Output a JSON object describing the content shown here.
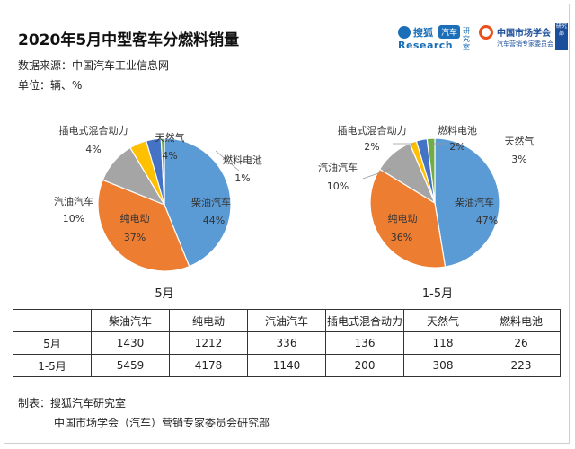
{
  "title": "2020年5月中型客车分燃料销量",
  "source": "数据来源：中国汽车工业信息网",
  "unit": "单位：辆、%",
  "logos": {
    "sohu": {
      "cn": "搜狐",
      "badge": "汽车",
      "en": "Research",
      "lab": "研究室"
    },
    "cma": {
      "cn": "中国市场学会",
      "sub": "汽车营销专家委员会",
      "tag": "研究部"
    }
  },
  "chart_data": [
    {
      "type": "pie",
      "title": "5月",
      "categories": [
        "柴油汽车",
        "纯电动",
        "汽油汽车",
        "插电式混合动力",
        "天然气",
        "燃料电池"
      ],
      "values": [
        1430,
        1212,
        336,
        136,
        118,
        26
      ],
      "percent_labels": [
        "44%",
        "37%",
        "10%",
        "4%",
        "4%",
        "1%"
      ],
      "colors": [
        "#5b9bd5",
        "#ed7d31",
        "#a5a5a5",
        "#ffc000",
        "#4472c4",
        "#70ad47"
      ]
    },
    {
      "type": "pie",
      "title": "1-5月",
      "categories": [
        "柴油汽车",
        "纯电动",
        "汽油汽车",
        "插电式混合动力",
        "天然气",
        "燃料电池"
      ],
      "values": [
        5459,
        4178,
        1140,
        200,
        308,
        223
      ],
      "percent_labels": [
        "47%",
        "36%",
        "10%",
        "2%",
        "3%",
        "2%"
      ],
      "colors": [
        "#5b9bd5",
        "#ed7d31",
        "#a5a5a5",
        "#ffc000",
        "#4472c4",
        "#70ad47"
      ]
    }
  ],
  "table": {
    "headers": [
      "",
      "柴油汽车",
      "纯电动",
      "汽油汽车",
      "插电式混合动力",
      "天然气",
      "燃料电池"
    ],
    "rows": [
      [
        "5月",
        "1430",
        "1212",
        "336",
        "136",
        "118",
        "26"
      ],
      [
        "1-5月",
        "5459",
        "4178",
        "1140",
        "200",
        "308",
        "223"
      ]
    ]
  },
  "footer": {
    "line1": "制表：搜狐汽车研究室",
    "line2": "中国市场学会（汽车）营销专家委员会研究部"
  }
}
